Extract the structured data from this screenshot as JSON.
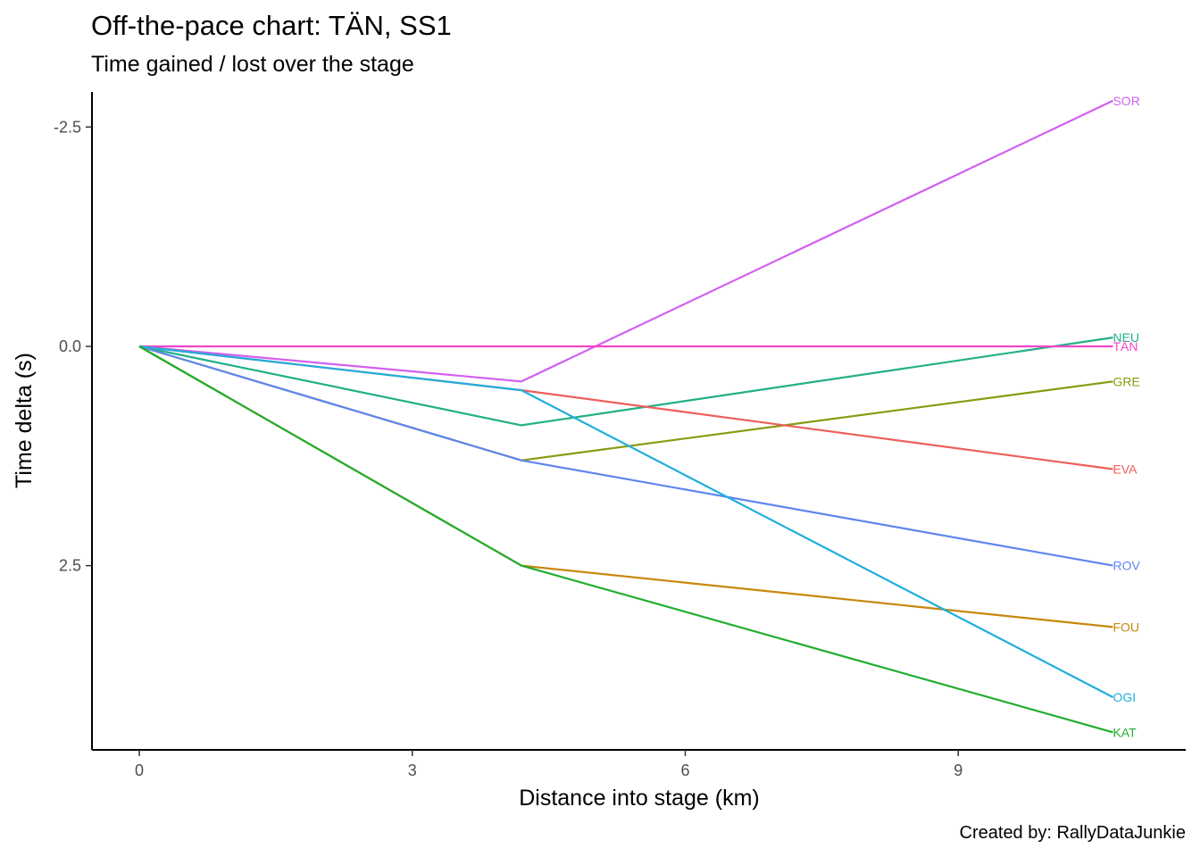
{
  "chart_data": {
    "type": "line",
    "title": "Off-the-pace chart: TÄN, SS1",
    "subtitle": "Time gained / lost over the stage",
    "caption": "Created by: RallyDataJunkie",
    "xlabel": "Distance into stage (km)",
    "ylabel": "Time delta (s)",
    "xlim": [
      -0.52,
      11.5
    ],
    "ylim": [
      -2.9,
      4.6
    ],
    "y_reversed": true,
    "x_ticks": [
      {
        "value": 0,
        "label": "0"
      },
      {
        "value": 3,
        "label": "3"
      },
      {
        "value": 6,
        "label": "6"
      },
      {
        "value": 9,
        "label": "9"
      }
    ],
    "y_ticks": [
      {
        "value": -2.5,
        "label": "-2.5"
      },
      {
        "value": 0,
        "label": "0.0"
      },
      {
        "value": 2.5,
        "label": "2.5"
      }
    ],
    "grid": false,
    "legend": "none",
    "x": [
      0,
      4.2,
      10.7
    ],
    "series": [
      {
        "name": "SOR",
        "values": [
          0,
          0.4,
          -2.8
        ],
        "color": "#D35FF1"
      },
      {
        "name": "NEU",
        "values": [
          0,
          0.9,
          -0.1
        ],
        "color": "#21B088"
      },
      {
        "name": "TÄN",
        "values": [
          0,
          0,
          0
        ],
        "color": "#F545C7"
      },
      {
        "name": "GRE",
        "values": [
          0,
          1.3,
          0.4
        ],
        "color": "#8A9A0F"
      },
      {
        "name": "EVA",
        "values": [
          0,
          0.5,
          1.4
        ],
        "color": "#ED5F5A"
      },
      {
        "name": "ROV",
        "values": [
          0,
          1.3,
          2.5
        ],
        "color": "#5E86F0"
      },
      {
        "name": "FOU",
        "values": [
          0,
          2.5,
          3.2
        ],
        "color": "#C8870A"
      },
      {
        "name": "OGI",
        "values": [
          0,
          0.5,
          4.0
        ],
        "color": "#1FAEDD"
      },
      {
        "name": "KAT",
        "values": [
          0,
          2.5,
          4.4
        ],
        "color": "#22AD2E"
      }
    ]
  }
}
